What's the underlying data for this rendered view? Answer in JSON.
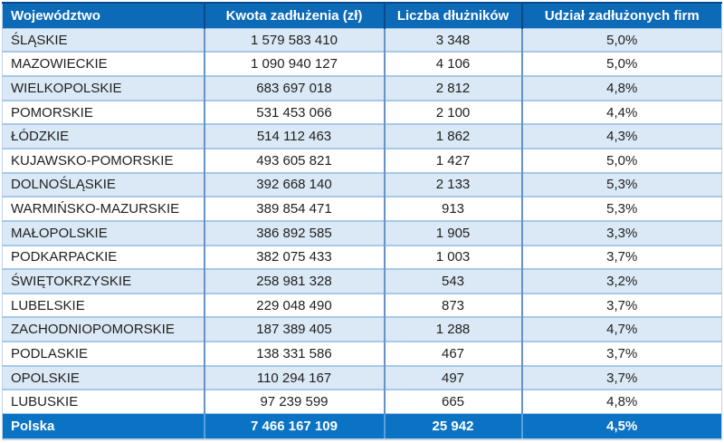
{
  "table": {
    "columns": [
      {
        "key": "voivodeship",
        "label": "Województwo"
      },
      {
        "key": "amount",
        "label": "Kwota zadłużenia (zł)"
      },
      {
        "key": "debtors",
        "label": "Liczba dłużników"
      },
      {
        "key": "share",
        "label": "Udział zadłużonych firm"
      }
    ],
    "rows": [
      {
        "voivodeship": "ŚLĄSKIE",
        "amount": "1 579 583 410",
        "debtors": "3 348",
        "share": "5,0%"
      },
      {
        "voivodeship": "MAZOWIECKIE",
        "amount": "1 090 940 127",
        "debtors": "4 106",
        "share": "5,0%"
      },
      {
        "voivodeship": "WIELKOPOLSKIE",
        "amount": "683 697 018",
        "debtors": "2 812",
        "share": "4,8%"
      },
      {
        "voivodeship": "POMORSKIE",
        "amount": "531 453 066",
        "debtors": "2 100",
        "share": "4,4%"
      },
      {
        "voivodeship": "ŁÓDZKIE",
        "amount": "514 112 463",
        "debtors": "1 862",
        "share": "4,3%"
      },
      {
        "voivodeship": "KUJAWSKO-POMORSKIE",
        "amount": "493 605 821",
        "debtors": "1 427",
        "share": "5,0%"
      },
      {
        "voivodeship": "DOLNOŚLĄSKIE",
        "amount": "392 668 140",
        "debtors": "2 133",
        "share": "5,3%"
      },
      {
        "voivodeship": "WARMIŃSKO-MAZURSKIE",
        "amount": "389 854 471",
        "debtors": "913",
        "share": "5,3%"
      },
      {
        "voivodeship": "MAŁOPOLSKIE",
        "amount": "386 892 585",
        "debtors": "1 905",
        "share": "3,3%"
      },
      {
        "voivodeship": "PODKARPACKIE",
        "amount": "382 075 433",
        "debtors": "1 003",
        "share": "3,7%"
      },
      {
        "voivodeship": "ŚWIĘTOKRZYSKIE",
        "amount": "258 981 328",
        "debtors": "543",
        "share": "3,2%"
      },
      {
        "voivodeship": "LUBELSKIE",
        "amount": "229 048 490",
        "debtors": "873",
        "share": "3,7%"
      },
      {
        "voivodeship": "ZACHODNIOPOMORSKIE",
        "amount": "187 389 405",
        "debtors": "1 288",
        "share": "4,7%"
      },
      {
        "voivodeship": "PODLASKIE",
        "amount": "138 331 586",
        "debtors": "467",
        "share": "3,7%"
      },
      {
        "voivodeship": "OPOLSKIE",
        "amount": "110 294 167",
        "debtors": "497",
        "share": "3,7%"
      },
      {
        "voivodeship": "LUBUSKIE",
        "amount": "97 239 599",
        "debtors": "665",
        "share": "4,8%"
      }
    ],
    "total": {
      "voivodeship": "Polska",
      "amount": "7 466 167 109",
      "debtors": "25 942",
      "share": "4,5%"
    }
  },
  "colors": {
    "header_bg": "#0d6ab7",
    "header_text": "#ffffff",
    "header_divider": "#0a4b8c",
    "footer_bg": "#0b73c4",
    "footer_text": "#ffffff",
    "footer_divider": "#58a0db",
    "row_stripe": "#dbe9f6",
    "row_white": "#ffffff",
    "row_line": "#a6c9e9",
    "column_divider": "#6593c6",
    "body_text": "#1f1f1f"
  },
  "chart_data": {
    "type": "table",
    "title": "",
    "columns": [
      "Województwo",
      "Kwota zadłużenia (zł)",
      "Liczba dłużników",
      "Udział zadłużonych firm"
    ],
    "rows": [
      [
        "ŚLĄSKIE",
        1579583410,
        3348,
        "5,0%"
      ],
      [
        "MAZOWIECKIE",
        1090940127,
        4106,
        "5,0%"
      ],
      [
        "WIELKOPOLSKIE",
        683697018,
        2812,
        "4,8%"
      ],
      [
        "POMORSKIE",
        531453066,
        2100,
        "4,4%"
      ],
      [
        "ŁÓDZKIE",
        514112463,
        1862,
        "4,3%"
      ],
      [
        "KUJAWSKO-POMORSKIE",
        493605821,
        1427,
        "5,0%"
      ],
      [
        "DOLNOŚLĄSKIE",
        392668140,
        2133,
        "5,3%"
      ],
      [
        "WARMIŃSKO-MAZURSKIE",
        389854471,
        913,
        "5,3%"
      ],
      [
        "MAŁOPOLSKIE",
        386892585,
        1905,
        "3,3%"
      ],
      [
        "PODKARPACKIE",
        382075433,
        1003,
        "3,7%"
      ],
      [
        "ŚWIĘTOKRZYSKIE",
        258981328,
        543,
        "3,2%"
      ],
      [
        "LUBELSKIE",
        229048490,
        873,
        "3,7%"
      ],
      [
        "ZACHODNIOPOMORSKIE",
        187389405,
        1288,
        "4,7%"
      ],
      [
        "PODLASKIE",
        138331586,
        467,
        "3,7%"
      ],
      [
        "OPOLSKIE",
        110294167,
        497,
        "3,7%"
      ],
      [
        "LUBUSKIE",
        97239599,
        665,
        "4,8%"
      ]
    ],
    "total_row": [
      "Polska",
      7466167109,
      25942,
      "4,5%"
    ]
  }
}
